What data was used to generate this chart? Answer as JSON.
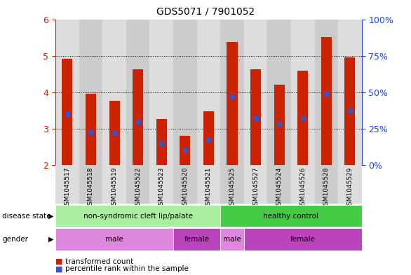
{
  "title": "GDS5071 / 7901052",
  "samples": [
    "GSM1045517",
    "GSM1045518",
    "GSM1045519",
    "GSM1045522",
    "GSM1045523",
    "GSM1045520",
    "GSM1045521",
    "GSM1045525",
    "GSM1045527",
    "GSM1045524",
    "GSM1045526",
    "GSM1045528",
    "GSM1045529"
  ],
  "bar_values": [
    4.92,
    3.95,
    3.77,
    4.62,
    3.27,
    2.8,
    3.48,
    5.37,
    4.62,
    4.2,
    4.58,
    5.52,
    4.95
  ],
  "percentile_values": [
    3.4,
    2.9,
    2.88,
    3.18,
    2.6,
    2.42,
    2.68,
    3.88,
    3.28,
    3.12,
    3.28,
    3.95,
    3.5
  ],
  "ymin": 2.0,
  "ymax": 6.0,
  "yticks_left": [
    2,
    3,
    4,
    5,
    6
  ],
  "ytick_labels_left": [
    "2",
    "3",
    "4",
    "5",
    "6"
  ],
  "yticks_right_pos": [
    2,
    3,
    4,
    5,
    6
  ],
  "ytick_labels_right": [
    "0%",
    "25%",
    "50%",
    "75%",
    "100%"
  ],
  "bar_color": "#cc2200",
  "percentile_color": "#3355cc",
  "disease_state_groups": [
    {
      "label": "non-syndromic cleft lip/palate",
      "start": 0,
      "end": 7,
      "color": "#aaeea0"
    },
    {
      "label": "healthy control",
      "start": 7,
      "end": 13,
      "color": "#44cc44"
    }
  ],
  "gender_groups": [
    {
      "label": "male",
      "start": 0,
      "end": 5,
      "color": "#dd88dd"
    },
    {
      "label": "female",
      "start": 5,
      "end": 7,
      "color": "#bb44bb"
    },
    {
      "label": "male",
      "start": 7,
      "end": 8,
      "color": "#dd88dd"
    },
    {
      "label": "female",
      "start": 8,
      "end": 13,
      "color": "#bb44bb"
    }
  ],
  "legend_entries": [
    {
      "label": "transformed count",
      "color": "#cc2200"
    },
    {
      "label": "percentile rank within the sample",
      "color": "#3355cc"
    }
  ],
  "left_axis_color": "#cc2200",
  "right_axis_color": "#2244cc",
  "col_colors": [
    "#dddddd",
    "#cccccc"
  ]
}
